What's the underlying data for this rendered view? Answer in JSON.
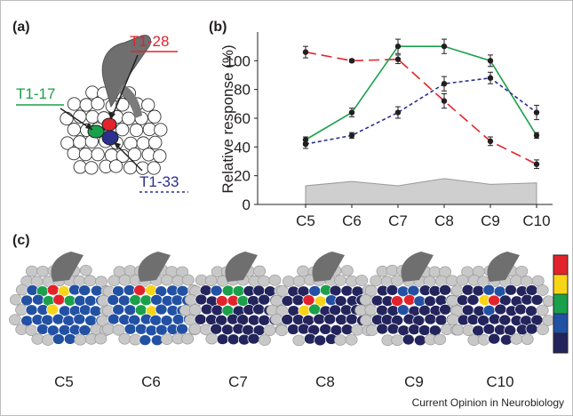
{
  "panels": {
    "a": "(a)",
    "b": "(b)",
    "c": "(c)"
  },
  "glomeruli": [
    {
      "name": "T1-28",
      "color": "#e3232b",
      "style": "solid"
    },
    {
      "name": "T1-17",
      "color": "#1aa04a",
      "style": "solid"
    },
    {
      "name": "T1-33",
      "color": "#2b2f8f",
      "style": "dashed"
    }
  ],
  "chart_data": {
    "type": "line",
    "categories": [
      "C5",
      "C6",
      "C7",
      "C8",
      "C9",
      "C10"
    ],
    "ylabel": "Relative response (%)",
    "xlabel": "",
    "ylim": [
      0,
      120
    ],
    "yticks": [
      0,
      20,
      40,
      60,
      80,
      100
    ],
    "series": [
      {
        "name": "T1-28",
        "color": "#e3232b",
        "dash": "long",
        "values": [
          106,
          100,
          101,
          72,
          44,
          28
        ],
        "errors": [
          4,
          1,
          3,
          5,
          3,
          3
        ]
      },
      {
        "name": "T1-17",
        "color": "#1aa04a",
        "dash": "solid",
        "values": [
          45,
          64,
          110,
          110,
          100,
          48
        ],
        "errors": [
          2,
          3,
          5,
          5,
          4,
          2
        ]
      },
      {
        "name": "T1-33",
        "color": "#2b2f8f",
        "dash": "short",
        "values": [
          42,
          48,
          64,
          84,
          88,
          64
        ],
        "errors": [
          3,
          2,
          4,
          5,
          4,
          5
        ]
      }
    ],
    "baseline": {
      "values": [
        13,
        16,
        13,
        18,
        14,
        15
      ],
      "color": "#cfcfcf"
    }
  },
  "maps": {
    "conditions": [
      "C5",
      "C6",
      "C7",
      "C8",
      "C9",
      "C10"
    ],
    "scale_colors": [
      "#e3232b",
      "#f7d417",
      "#1aa04a",
      "#2251a4",
      "#23245c"
    ]
  },
  "credit": "Current Opinion in Neurobiology"
}
